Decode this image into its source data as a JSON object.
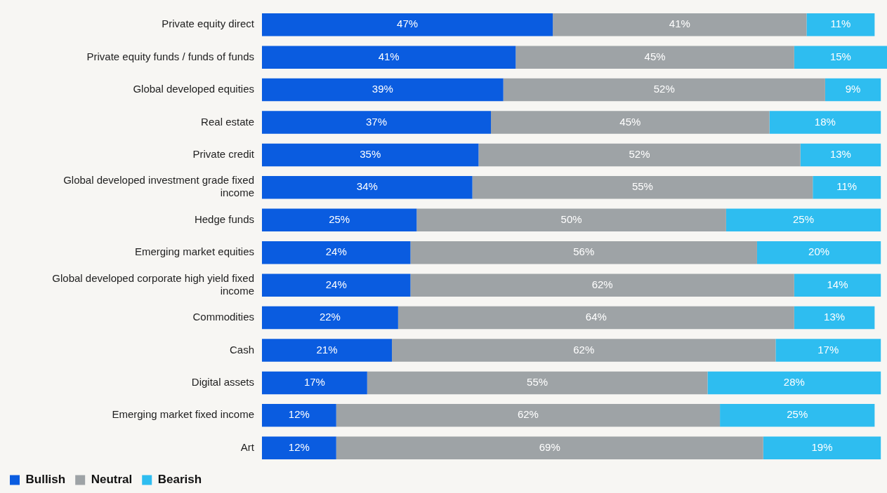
{
  "chart_data": {
    "type": "bar",
    "orientation": "horizontal",
    "stacked": true,
    "legend": "bottom",
    "tick_labels": "y",
    "xlim": [
      0,
      101
    ],
    "categories": [
      "Private equity direct",
      "Private equity funds / funds of funds",
      "Global developed equities",
      "Real estate",
      "Private credit",
      "Global developed investment grade fixed income",
      "Hedge funds",
      "Emerging market equities",
      "Global developed corporate high yield fixed income",
      "Commodities",
      "Cash",
      "Digital assets",
      "Emerging market fixed income",
      "Art"
    ],
    "series": [
      {
        "name": "Bullish",
        "color": "#0a5ce0",
        "values": [
          47,
          41,
          39,
          37,
          35,
          34,
          25,
          24,
          24,
          22,
          21,
          17,
          12,
          12
        ],
        "value_labels": [
          "47%",
          "41%",
          "39%",
          "37%",
          "35%",
          "34%",
          "25%",
          "24%",
          "24%",
          "22%",
          "21%",
          "17%",
          "12%",
          "12%"
        ]
      },
      {
        "name": "Neutral",
        "color": "#9ea3a6",
        "values": [
          41,
          45,
          52,
          45,
          52,
          55,
          50,
          56,
          62,
          64,
          62,
          55,
          62,
          69
        ],
        "value_labels": [
          "41%",
          "45%",
          "52%",
          "45%",
          "52%",
          "55%",
          "50%",
          "56%",
          "62%",
          "64%",
          "62%",
          "55%",
          "62%",
          "69%"
        ]
      },
      {
        "name": "Bearish",
        "color": "#2ebdf0",
        "values": [
          11,
          15,
          9,
          18,
          13,
          11,
          25,
          20,
          14,
          13,
          17,
          28,
          25,
          19
        ],
        "value_labels": [
          "11%",
          "15%",
          "9%",
          "18%",
          "13%",
          "11%",
          "25%",
          "20%",
          "14%",
          "13%",
          "17%",
          "28%",
          "25%",
          "19%"
        ]
      }
    ]
  }
}
